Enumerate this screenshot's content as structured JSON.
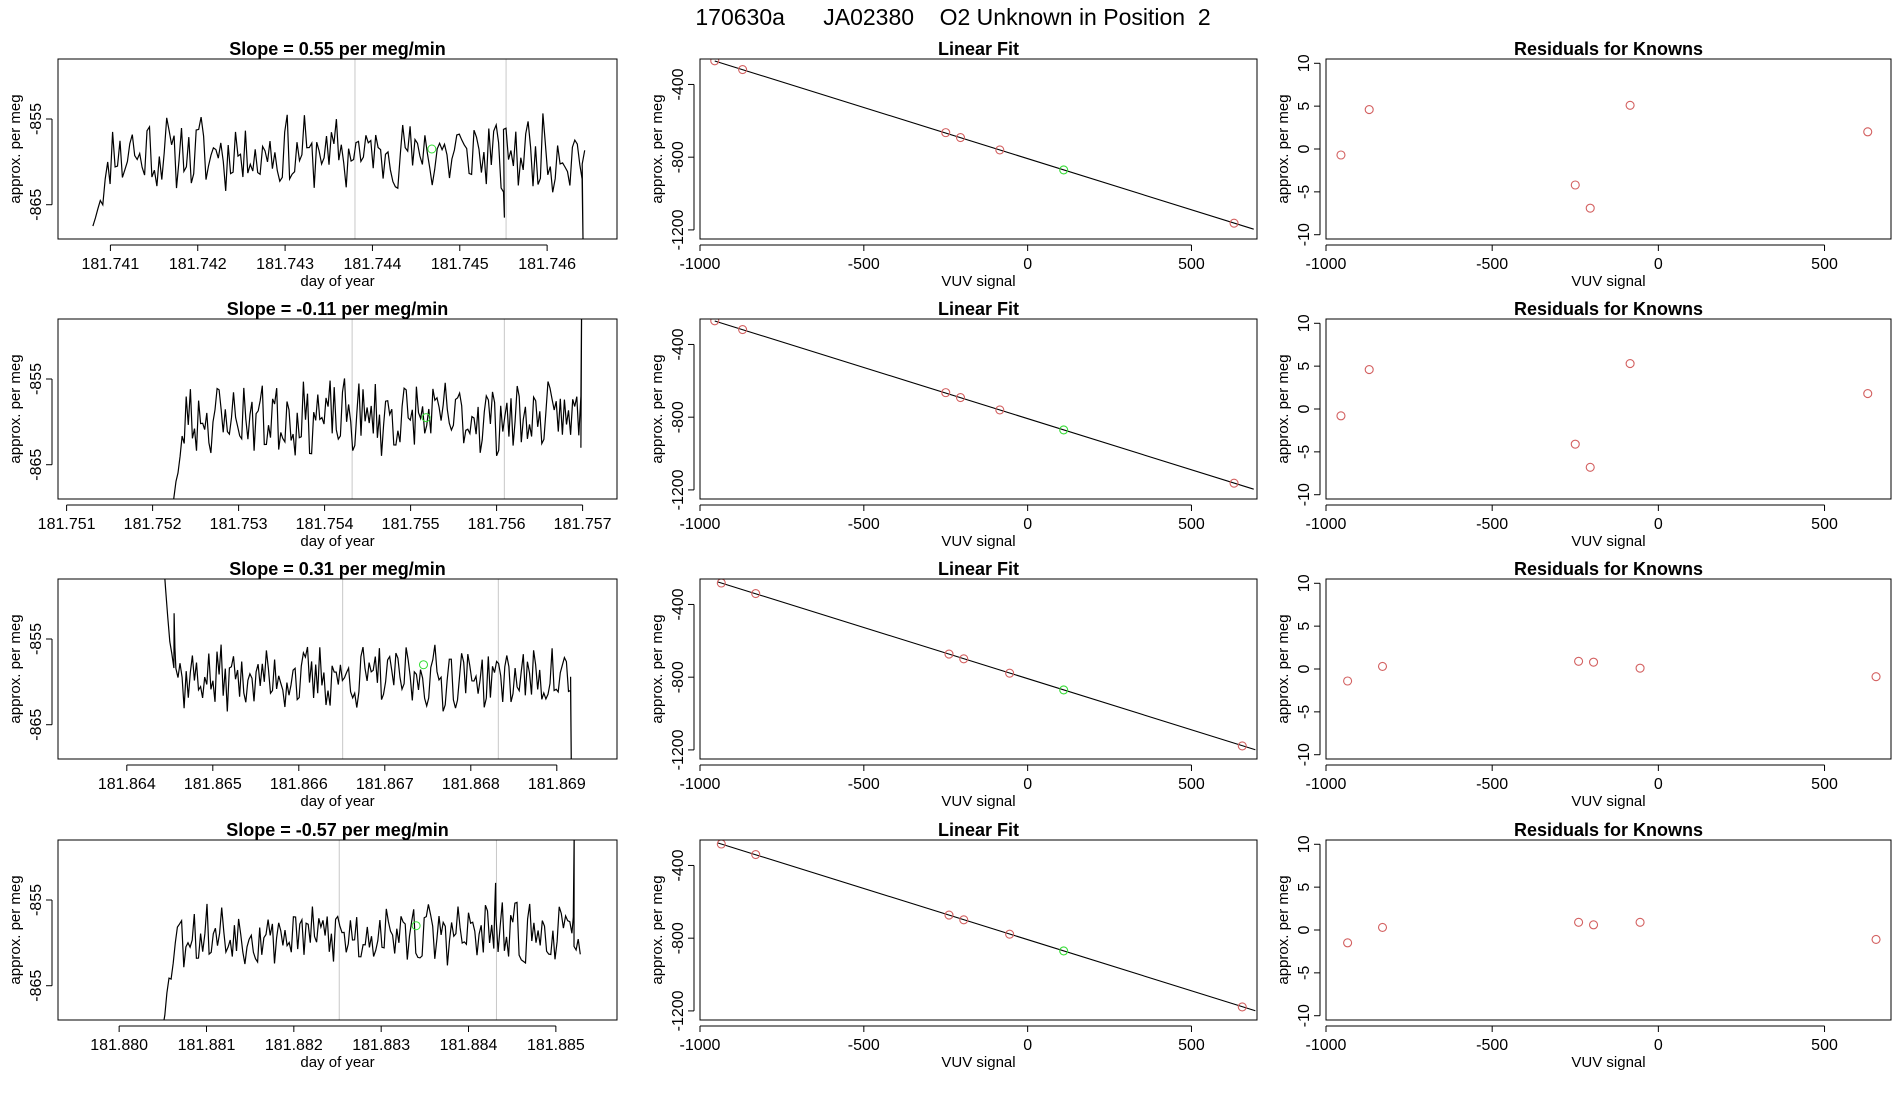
{
  "page_title": "170630a      JA02380    O2 Unknown in Position  2",
  "colors": {
    "line": "#000000",
    "known": "#d36060",
    "unknown": "#33dd33",
    "marker_line": "#c8c8c8",
    "axis": "#000000"
  },
  "chart_data": [
    {
      "id": "r1-trace",
      "type": "line",
      "title": "Slope =  0.55  per meg/min",
      "xlabel": "day of year",
      "ylabel": "approx. per meg",
      "xlim": [
        181.7404,
        181.7468
      ],
      "ylim": [
        -869,
        -848
      ],
      "xticks": [
        181.741,
        181.742,
        181.743,
        181.744,
        181.745,
        181.746
      ],
      "yticks": [
        -855,
        -865
      ],
      "xtick_decimals": 3,
      "x_start": 181.7408,
      "x_end": 181.74643,
      "start_y": -867.5,
      "base": -859,
      "amp": 3.5,
      "seed": 11,
      "edges": [
        [
          181.7455,
          -863.5,
          -866.5
        ],
        [
          181.7464,
          -862,
          -869
        ]
      ],
      "vlines": [
        181.7438,
        181.74553
      ],
      "unknown_point": [
        181.74468,
        -858.5
      ]
    },
    {
      "id": "r1-fit",
      "type": "scatter",
      "title": "Linear Fit",
      "xlabel": "VUV signal",
      "ylabel": "approx. per meg",
      "xlim": [
        -1000,
        700
      ],
      "ylim": [
        -1250,
        -260
      ],
      "xticks": [
        -1000,
        -500,
        0,
        500
      ],
      "yticks": [
        -400,
        -800,
        -1200
      ],
      "fit": {
        "slope": -0.5625,
        "intercept": -808,
        "x_range": [
          -955,
          690
        ]
      },
      "points": [
        [
          -955,
          -270
        ],
        [
          -870,
          -318
        ],
        [
          -250,
          -665
        ],
        [
          -205,
          -692
        ],
        [
          -85,
          -760
        ],
        [
          630,
          -1163
        ]
      ],
      "unknown_point": [
        110,
        -870
      ]
    },
    {
      "id": "r1-resid",
      "type": "scatter",
      "title": "Residuals for Knowns",
      "xlabel": "VUV signal",
      "ylabel": "approx. per meg",
      "xlim": [
        -1000,
        700
      ],
      "ylim": [
        -10.5,
        10.5
      ],
      "xticks": [
        -1000,
        -500,
        0,
        500
      ],
      "yticks": [
        10,
        5,
        0,
        -5,
        -10
      ],
      "points": [
        [
          -955,
          -0.7
        ],
        [
          -870,
          4.6
        ],
        [
          -250,
          -4.2
        ],
        [
          -205,
          -6.9
        ],
        [
          -85,
          5.1
        ],
        [
          630,
          2.0
        ]
      ]
    },
    {
      "id": "r2-trace",
      "type": "line",
      "title": "Slope =  -0.11  per meg/min",
      "xlabel": "day of year",
      "ylabel": "approx. per meg",
      "xlim": [
        181.7509,
        181.7574
      ],
      "ylim": [
        -869,
        -848
      ],
      "xticks": [
        181.751,
        181.752,
        181.753,
        181.754,
        181.755,
        181.756,
        181.757
      ],
      "yticks": [
        -855,
        -865
      ],
      "xtick_decimals": 3,
      "x_start": 181.7522,
      "x_end": 181.75698,
      "start_y": -872,
      "base": -859.5,
      "amp": 3.5,
      "seed": 23,
      "edges": [
        [
          181.75698,
          -857,
          -845
        ]
      ],
      "vlines": [
        181.75432,
        181.75609
      ],
      "unknown_point": [
        181.75518,
        -859.5
      ]
    },
    {
      "id": "r2-fit",
      "type": "scatter",
      "title": "Linear Fit",
      "xlabel": "VUV signal",
      "ylabel": "approx. per meg",
      "xlim": [
        -1000,
        700
      ],
      "ylim": [
        -1250,
        -260
      ],
      "xticks": [
        -1000,
        -500,
        0,
        500
      ],
      "yticks": [
        -400,
        -800,
        -1200
      ],
      "fit": {
        "slope": -0.5625,
        "intercept": -808,
        "x_range": [
          -955,
          690
        ]
      },
      "points": [
        [
          -955,
          -270
        ],
        [
          -870,
          -318
        ],
        [
          -250,
          -665
        ],
        [
          -205,
          -692
        ],
        [
          -85,
          -760
        ],
        [
          630,
          -1163
        ]
      ],
      "unknown_point": [
        110,
        -870
      ]
    },
    {
      "id": "r2-resid",
      "type": "scatter",
      "title": "Residuals for Knowns",
      "xlabel": "VUV signal",
      "ylabel": "approx. per meg",
      "xlim": [
        -1000,
        700
      ],
      "ylim": [
        -10.5,
        10.5
      ],
      "xticks": [
        -1000,
        -500,
        0,
        500
      ],
      "yticks": [
        10,
        5,
        0,
        -5,
        -10
      ],
      "points": [
        [
          -955,
          -0.8
        ],
        [
          -870,
          4.6
        ],
        [
          -250,
          -4.1
        ],
        [
          -205,
          -6.8
        ],
        [
          -85,
          5.3
        ],
        [
          630,
          1.8
        ]
      ]
    },
    {
      "id": "r3-trace",
      "type": "line",
      "title": "Slope =  0.31  per meg/min",
      "xlabel": "day of year",
      "ylabel": "approx. per meg",
      "xlim": [
        181.8632,
        181.8697
      ],
      "ylim": [
        -869,
        -848
      ],
      "xticks": [
        181.864,
        181.865,
        181.866,
        181.867,
        181.868,
        181.869
      ],
      "yticks": [
        -855,
        -865
      ],
      "xtick_decimals": 3,
      "x_start": 181.86438,
      "x_end": 181.86916,
      "start_y": -842,
      "base": -859.5,
      "amp": 3.0,
      "seed": 37,
      "edges": [
        [
          181.86455,
          -852,
          -856
        ],
        [
          181.86916,
          -861,
          -871
        ]
      ],
      "vlines": [
        181.86651,
        181.86832
      ],
      "unknown_point": [
        181.86745,
        -858.0
      ]
    },
    {
      "id": "r3-fit",
      "type": "scatter",
      "title": "Linear Fit",
      "xlabel": "VUV signal",
      "ylabel": "approx. per meg",
      "xlim": [
        -1000,
        700
      ],
      "ylim": [
        -1250,
        -260
      ],
      "xticks": [
        -1000,
        -500,
        0,
        500
      ],
      "yticks": [
        -400,
        -800,
        -1200
      ],
      "fit": {
        "slope": -0.5625,
        "intercept": -808,
        "x_range": [
          -945,
          695
        ]
      },
      "points": [
        [
          -935,
          -282
        ],
        [
          -830,
          -340
        ],
        [
          -240,
          -673
        ],
        [
          -195,
          -699
        ],
        [
          -55,
          -778
        ],
        [
          655,
          -1178
        ]
      ],
      "unknown_point": [
        110,
        -870
      ]
    },
    {
      "id": "r3-resid",
      "type": "scatter",
      "title": "Residuals for Knowns",
      "xlabel": "VUV signal",
      "ylabel": "approx. per meg",
      "xlim": [
        -1000,
        700
      ],
      "ylim": [
        -10.5,
        10.5
      ],
      "xticks": [
        -1000,
        -500,
        0,
        500
      ],
      "yticks": [
        10,
        5,
        0,
        -5,
        -10
      ],
      "points": [
        [
          -935,
          -1.4
        ],
        [
          -830,
          0.3
        ],
        [
          -240,
          0.9
        ],
        [
          -195,
          0.8
        ],
        [
          -55,
          0.1
        ],
        [
          655,
          -0.9
        ]
      ]
    },
    {
      "id": "r4-trace",
      "type": "line",
      "title": "Slope =  -0.57  per meg/min",
      "xlabel": "day of year",
      "ylabel": "approx. per meg",
      "xlim": [
        181.8793,
        181.8857
      ],
      "ylim": [
        -869,
        -848
      ],
      "xticks": [
        181.88,
        181.881,
        181.882,
        181.883,
        181.884,
        181.885
      ],
      "yticks": [
        -855,
        -865
      ],
      "xtick_decimals": 3,
      "x_start": 181.88045,
      "x_end": 181.88528,
      "start_y": -873,
      "base": -859,
      "amp": 3.0,
      "seed": 53,
      "edges": [
        [
          181.8843,
          -856,
          -853
        ],
        [
          181.8852,
          -857,
          -847
        ]
      ],
      "vlines": [
        181.88252,
        181.88432
      ],
      "unknown_point": [
        181.8834,
        -858.0
      ]
    },
    {
      "id": "r4-fit",
      "type": "scatter",
      "title": "Linear Fit",
      "xlabel": "VUV signal",
      "ylabel": "approx. per meg",
      "xlim": [
        -1000,
        700
      ],
      "ylim": [
        -1250,
        -260
      ],
      "xticks": [
        -1000,
        -500,
        0,
        500
      ],
      "yticks": [
        -400,
        -800,
        -1200
      ],
      "fit": {
        "slope": -0.5625,
        "intercept": -808,
        "x_range": [
          -945,
          695
        ]
      },
      "points": [
        [
          -935,
          -282
        ],
        [
          -830,
          -340
        ],
        [
          -240,
          -673
        ],
        [
          -195,
          -699
        ],
        [
          -55,
          -778
        ],
        [
          655,
          -1178
        ]
      ],
      "unknown_point": [
        110,
        -870
      ]
    },
    {
      "id": "r4-resid",
      "type": "scatter",
      "title": "Residuals for Knowns",
      "xlabel": "VUV signal",
      "ylabel": "approx. per meg",
      "xlim": [
        -1000,
        700
      ],
      "ylim": [
        -10.5,
        10.5
      ],
      "xticks": [
        -1000,
        -500,
        0,
        500
      ],
      "yticks": [
        10,
        5,
        0,
        -5,
        -10
      ],
      "points": [
        [
          -935,
          -1.5
        ],
        [
          -830,
          0.3
        ],
        [
          -240,
          0.9
        ],
        [
          -195,
          0.6
        ],
        [
          -55,
          0.9
        ],
        [
          655,
          -1.1
        ]
      ]
    }
  ]
}
